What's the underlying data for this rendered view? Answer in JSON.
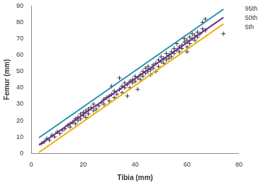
{
  "chart_data": {
    "type": "scatter",
    "x_label": "Tibia (mm)",
    "y_label": "Femur (mm)",
    "xlim": [
      0,
      80
    ],
    "xticks": [
      0,
      20,
      40,
      60,
      80
    ],
    "ylim": [
      0,
      90
    ],
    "yticks": [
      0,
      10,
      20,
      30,
      40,
      50,
      60,
      70,
      80,
      90
    ],
    "grid": false,
    "legend": "right",
    "series": [
      {
        "name": "95th",
        "type": "line",
        "color": "#1e8fb4",
        "line_style": "solid",
        "x": [
          3,
          74
        ],
        "values": [
          9.5,
          88
        ]
      },
      {
        "name": "50th",
        "type": "line",
        "color": "#6b2d8c",
        "line_style": "solid",
        "x": [
          3,
          74
        ],
        "values": [
          5,
          83
        ]
      },
      {
        "name": "5th",
        "type": "line",
        "color": "#f2a900",
        "line_style": "solid",
        "x": [
          3,
          74
        ],
        "values": [
          0.5,
          79
        ]
      },
      {
        "type": "scatter",
        "color": "#333333",
        "marker": "cross",
        "x": [
          4,
          5,
          6,
          7,
          8,
          9,
          10,
          11,
          12,
          13,
          14,
          15,
          15,
          16,
          17,
          17,
          18,
          18,
          19,
          19,
          20,
          20,
          21,
          21,
          22,
          22,
          23,
          24,
          24,
          25,
          26,
          27,
          28,
          28,
          29,
          30,
          30,
          31,
          31,
          32,
          32,
          33,
          34,
          34,
          35,
          35,
          36,
          36,
          37,
          37,
          38,
          38,
          39,
          39,
          40,
          40,
          41,
          41,
          42,
          42,
          43,
          43,
          44,
          44,
          45,
          45,
          46,
          46,
          47,
          47,
          48,
          48,
          49,
          49,
          50,
          50,
          51,
          51,
          52,
          52,
          53,
          53,
          54,
          54,
          55,
          55,
          56,
          56,
          57,
          57,
          58,
          58,
          59,
          59,
          60,
          60,
          60,
          61,
          61,
          62,
          62,
          63,
          63,
          64,
          64,
          65,
          66,
          66,
          67,
          67,
          74
        ],
        "values": [
          6,
          7,
          9,
          8,
          11,
          10,
          13,
          12,
          14,
          15,
          17,
          16,
          18,
          19,
          18,
          21,
          20,
          22,
          21,
          24,
          23,
          25,
          22,
          26,
          24,
          27,
          28,
          26,
          30,
          27,
          29,
          31,
          33,
          30,
          34,
          32,
          35,
          36,
          41,
          34,
          38,
          36,
          39,
          46,
          37,
          41,
          40,
          43,
          35,
          42,
          44,
          40,
          45,
          43,
          44,
          47,
          46,
          39,
          48,
          45,
          47,
          50,
          49,
          52,
          50,
          53,
          51,
          48,
          54,
          52,
          55,
          50,
          53,
          57,
          56,
          59,
          55,
          58,
          57,
          61,
          60,
          58,
          62,
          59,
          61,
          64,
          63,
          67,
          62,
          65,
          66,
          64,
          68,
          70,
          65,
          69,
          62,
          67,
          71,
          70,
          73,
          72,
          69,
          71,
          74,
          73,
          76,
          80,
          82,
          75,
          73
        ]
      }
    ]
  }
}
